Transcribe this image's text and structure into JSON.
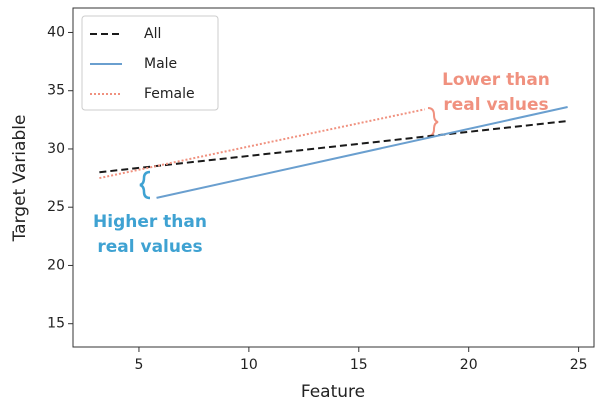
{
  "chart_data": {
    "type": "line",
    "x_label": "Feature",
    "y_label": "Target Variable",
    "xlim": [
      2.0,
      25.7
    ],
    "ylim": [
      13.0,
      42.1
    ],
    "xticks": [
      5,
      10,
      15,
      20,
      25
    ],
    "yticks": [
      15,
      20,
      25,
      30,
      35,
      40
    ],
    "legend_position": "upper left",
    "series": [
      {
        "name": "All",
        "color": "#1a1a1a",
        "style": "dashed",
        "x": [
          3.2,
          24.5
        ],
        "values": [
          28.0,
          32.4
        ]
      },
      {
        "name": "Male",
        "color": "#6a9fcf",
        "style": "solid",
        "x": [
          5.8,
          24.5
        ],
        "values": [
          25.8,
          33.6
        ]
      },
      {
        "name": "Female",
        "color": "#f0917f",
        "style": "dotted",
        "x": [
          3.2,
          18.0
        ],
        "values": [
          27.5,
          33.4
        ]
      }
    ],
    "annotations": [
      {
        "lines": [
          "Lower than",
          "real values"
        ],
        "color": "#f0917f"
      },
      {
        "lines": [
          "Higher than",
          "real values"
        ],
        "color": "#3fa2d2"
      }
    ]
  }
}
